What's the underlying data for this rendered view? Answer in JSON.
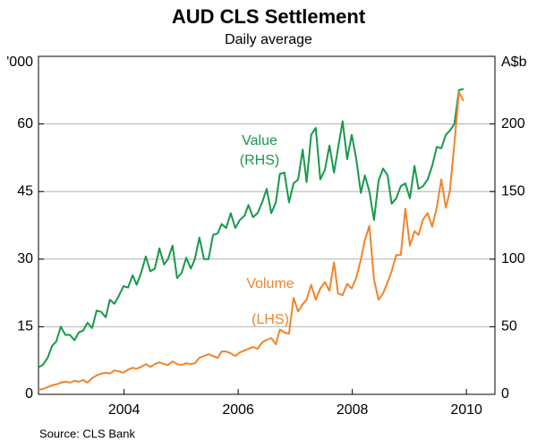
{
  "chart_data": {
    "type": "line",
    "title": "AUD CLS Settlement",
    "subtitle": "Daily average",
    "y_unit": "'000",
    "y2_unit": "A$b",
    "source": "Source: CLS Bank",
    "annotations": [
      "(RHS)",
      "(LHS)"
    ],
    "x": [
      2002.5,
      2002.58,
      2002.66,
      2002.74,
      2002.81,
      2002.89,
      2002.97,
      2003.05,
      2003.13,
      2003.21,
      2003.28,
      2003.36,
      2003.44,
      2003.52,
      2003.6,
      2003.68,
      2003.75,
      2003.83,
      2003.91,
      2003.99,
      2004.07,
      2004.15,
      2004.22,
      2004.3,
      2004.38,
      2004.46,
      2004.54,
      2004.62,
      2004.7,
      2004.77,
      2004.85,
      2004.93,
      2005.01,
      2005.09,
      2005.17,
      2005.24,
      2005.32,
      2005.4,
      2005.48,
      2005.56,
      2005.64,
      2005.71,
      2005.79,
      2005.87,
      2005.95,
      2006.03,
      2006.11,
      2006.18,
      2006.26,
      2006.34,
      2006.42,
      2006.5,
      2006.58,
      2006.66,
      2006.73,
      2006.81,
      2006.89,
      2006.97,
      2007.05,
      2007.13,
      2007.2,
      2007.28,
      2007.36,
      2007.44,
      2007.52,
      2007.6,
      2007.68,
      2007.75,
      2007.83,
      2007.91,
      2007.99,
      2008.07,
      2008.15,
      2008.22,
      2008.3,
      2008.38,
      2008.46,
      2008.54,
      2008.62,
      2008.69,
      2008.77,
      2008.85,
      2008.93,
      2009.01,
      2009.09,
      2009.16,
      2009.24,
      2009.32,
      2009.4,
      2009.48,
      2009.56,
      2009.64,
      2009.71,
      2009.79,
      2009.87,
      2009.95
    ],
    "series": [
      {
        "name": "Value",
        "color": "#17994a",
        "axis": "y2",
        "values": [
          20,
          22,
          27,
          36,
          39,
          50,
          44,
          44,
          40,
          46,
          47,
          53,
          49,
          62,
          61,
          57,
          70,
          67,
          73,
          80,
          79,
          88,
          81,
          90,
          102,
          91,
          93,
          108,
          96,
          100,
          110,
          86,
          90,
          101,
          93,
          100,
          116,
          100,
          100,
          118,
          119,
          126,
          123,
          134,
          123,
          129,
          132,
          140,
          131,
          134,
          142,
          152,
          134,
          142,
          163,
          164,
          142,
          156,
          159,
          181,
          157,
          192,
          197,
          159,
          166,
          184,
          164,
          182,
          202,
          174,
          192,
          174,
          149,
          162,
          150,
          129,
          158,
          167,
          162,
          141,
          145,
          154,
          156,
          145,
          169,
          152,
          154,
          159,
          169,
          183,
          182,
          192,
          195,
          200,
          225,
          226
        ]
      },
      {
        "name": "Volume",
        "color": "#f0842a",
        "values": [
          1.0,
          1.2,
          1.6,
          2.0,
          2.2,
          2.6,
          2.8,
          2.6,
          3.0,
          2.8,
          3.2,
          2.6,
          3.6,
          4.2,
          4.6,
          4.8,
          4.6,
          5.3,
          5.1,
          4.8,
          5.5,
          5.9,
          5.7,
          6.1,
          6.7,
          6.1,
          6.7,
          7.1,
          6.7,
          6.5,
          7.3,
          6.7,
          6.5,
          6.9,
          6.7,
          6.9,
          8.1,
          8.5,
          8.9,
          8.5,
          8.1,
          9.5,
          9.5,
          9.1,
          8.5,
          9.3,
          9.7,
          10.1,
          10.5,
          10.1,
          11.5,
          12.1,
          12.5,
          11.1,
          14.4,
          13.7,
          13.5,
          21.4,
          18.4,
          20.0,
          21.0,
          24.3,
          21.0,
          23.5,
          24.9,
          23.0,
          29.3,
          22.4,
          22.0,
          24.5,
          23.5,
          25.9,
          29.9,
          34.2,
          37.4,
          25.5,
          21.0,
          22.4,
          24.9,
          27.3,
          30.9,
          30.9,
          41.2,
          33.0,
          36.2,
          35.4,
          38.8,
          40.2,
          37.2,
          41.4,
          47.7,
          41.4,
          45.1,
          55.6,
          67.1,
          65.1
        ]
      }
    ],
    "xlim": [
      2002.5,
      2010.5
    ],
    "xticks": [
      2004,
      2006,
      2008,
      2010
    ],
    "ylim": [
      0,
      75
    ],
    "yticks": [
      0,
      15,
      30,
      45,
      60
    ],
    "y2lim": [
      0,
      250
    ],
    "y2ticks": [
      0,
      50,
      100,
      150,
      200
    ],
    "grid": true
  }
}
